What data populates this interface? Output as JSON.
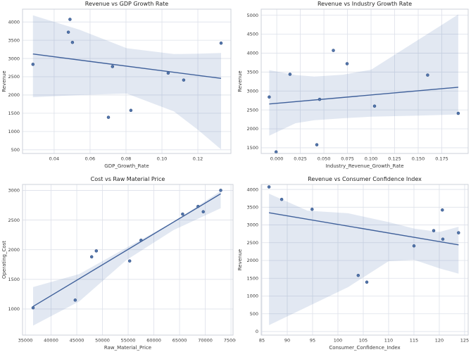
{
  "figure": {
    "background": "#ffffff",
    "point_color": "#5377ac",
    "point_edge_color": "#39568a",
    "line_color": "#40619b",
    "band_color": "#4c72b0",
    "band_opacity": 0.16,
    "grid_color": "#dde1ea",
    "spine_color": "#ccd0da",
    "title_color": "#1f1f1f",
    "tick_color": "#3a3a3a"
  },
  "chart_data": [
    {
      "id": "revenue-vs-gdp-growth-rate",
      "type": "scatter",
      "title": "Revenue vs GDP Growth Rate",
      "xlabel": "GDP_Growth_Rate",
      "ylabel": "Revenue",
      "xlim": [
        0.0224,
        0.1384
      ],
      "ylim": [
        400,
        4350
      ],
      "xticks": [
        0.04,
        0.06,
        0.08,
        0.1,
        0.12
      ],
      "xtick_decimals": 2,
      "yticks": [
        500,
        1000,
        1500,
        2000,
        2500,
        3000,
        3500,
        4000
      ],
      "ytick_decimals": 0,
      "grid": true,
      "legend": "none",
      "points": [
        [
          0.0282,
          2840
        ],
        [
          0.0488,
          4070
        ],
        [
          0.0479,
          3720
        ],
        [
          0.0502,
          3440
        ],
        [
          0.0725,
          2780
        ],
        [
          0.0702,
          1390
        ],
        [
          0.0827,
          1580
        ],
        [
          0.1035,
          2600
        ],
        [
          0.1121,
          2410
        ],
        [
          0.1329,
          3420
        ]
      ],
      "trend": {
        "x": [
          0.0282,
          0.1329
        ],
        "y": [
          3122,
          2455
        ]
      },
      "ci_band": {
        "x": [
          0.0282,
          0.054,
          0.0804,
          0.1067,
          0.12,
          0.1329
        ],
        "upper": [
          4180,
          3790,
          3280,
          3120,
          3130,
          3150
        ],
        "lower": [
          1940,
          2000,
          2040,
          1550,
          1050,
          510
        ]
      }
    },
    {
      "id": "revenue-vs-industry-growth-rate",
      "type": "scatter",
      "title": "Revenue vs Industry Growth Rate",
      "xlabel": "Industry_Revenue_Growth_Rate",
      "ylabel": "Revenue",
      "xlim": [
        -0.0165,
        0.203
      ],
      "ylim": [
        1350,
        5160
      ],
      "xticks": [
        0.0,
        0.025,
        0.05,
        0.075,
        0.1,
        0.125,
        0.15,
        0.175
      ],
      "xtick_decimals": 3,
      "yticks": [
        1500,
        2000,
        2500,
        3000,
        3500,
        4000,
        4500,
        5000
      ],
      "ytick_decimals": 0,
      "grid": true,
      "legend": "none",
      "points": [
        [
          -0.008,
          2840
        ],
        [
          -0.0007,
          1390
        ],
        [
          0.014,
          3440
        ],
        [
          0.0425,
          1580
        ],
        [
          0.0455,
          2780
        ],
        [
          0.06,
          4070
        ],
        [
          0.0746,
          3720
        ],
        [
          0.1037,
          2600
        ],
        [
          0.16,
          3420
        ],
        [
          0.1925,
          2410
        ]
      ],
      "trend": {
        "x": [
          -0.008,
          0.1925
        ],
        "y": [
          2656,
          3099
        ]
      },
      "ci_band": {
        "x": [
          -0.008,
          0.02,
          0.04,
          0.07,
          0.1,
          0.15,
          0.1925
        ],
        "upper": [
          3550,
          3420,
          3380,
          3430,
          3560,
          4350,
          5020
        ],
        "lower": [
          1820,
          2150,
          2230,
          2280,
          2320,
          2350,
          2380
        ]
      }
    },
    {
      "id": "cost-vs-raw-material-price",
      "type": "scatter",
      "title": "Cost vs Raw Material Price",
      "xlabel": "Raw_Material_Price",
      "ylabel": "Operating_Cost",
      "xlim": [
        34450,
        75400
      ],
      "ylim": [
        560,
        3100
      ],
      "xticks": [
        35000,
        40000,
        45000,
        50000,
        55000,
        60000,
        65000,
        70000,
        75000
      ],
      "xtick_decimals": 0,
      "yticks": [
        1000,
        1500,
        2000,
        2500,
        3000
      ],
      "ytick_decimals": 0,
      "grid": true,
      "legend": "none",
      "points": [
        [
          36500,
          1020
        ],
        [
          44700,
          1150
        ],
        [
          47900,
          1880
        ],
        [
          48800,
          1980
        ],
        [
          55300,
          1810
        ],
        [
          57500,
          2160
        ],
        [
          65600,
          2600
        ],
        [
          68600,
          2730
        ],
        [
          69600,
          2640
        ],
        [
          73000,
          3000
        ]
      ],
      "trend": {
        "x": [
          36500,
          73000
        ],
        "y": [
          1043,
          2943
        ]
      },
      "ci_band": {
        "x": [
          36500,
          45500,
          54600,
          63800,
          73000
        ],
        "upper": [
          1370,
          1590,
          2030,
          2470,
          2990
        ],
        "lower": [
          720,
          1130,
          1820,
          2330,
          2700
        ]
      }
    },
    {
      "id": "revenue-vs-consumer-confidence-index",
      "type": "scatter",
      "title": "Revenue vs Consumer Confidence Index",
      "xlabel": "Consumer_Confidence_Index",
      "ylabel": "Revenue",
      "xlim": [
        84.86,
        125.7
      ],
      "ylim": [
        -100,
        4140
      ],
      "xticks": [
        85,
        90,
        95,
        100,
        105,
        110,
        115,
        120,
        125
      ],
      "xtick_decimals": 0,
      "yticks": [
        0,
        500,
        1000,
        1500,
        2000,
        2500,
        3000,
        3500,
        4000
      ],
      "ytick_decimals": 0,
      "grid": true,
      "legend": "none",
      "points": [
        [
          86.4,
          4070
        ],
        [
          88.9,
          3720
        ],
        [
          94.9,
          3440
        ],
        [
          104,
          1580
        ],
        [
          105.7,
          1390
        ],
        [
          115,
          2410
        ],
        [
          118.9,
          2840
        ],
        [
          120.6,
          3420
        ],
        [
          120.7,
          2600
        ],
        [
          123.8,
          2780
        ]
      ],
      "trend": {
        "x": [
          86.4,
          123.8
        ],
        "y": [
          3344,
          2440
        ]
      },
      "ci_band": {
        "x": [
          86.4,
          94,
          102,
          110,
          115,
          120,
          123.8
        ],
        "upper": [
          3880,
          3400,
          3330,
          3080,
          2900,
          2800,
          2950
        ],
        "lower": [
          180,
          700,
          1250,
          1980,
          2020,
          1780,
          1630
        ]
      }
    }
  ]
}
